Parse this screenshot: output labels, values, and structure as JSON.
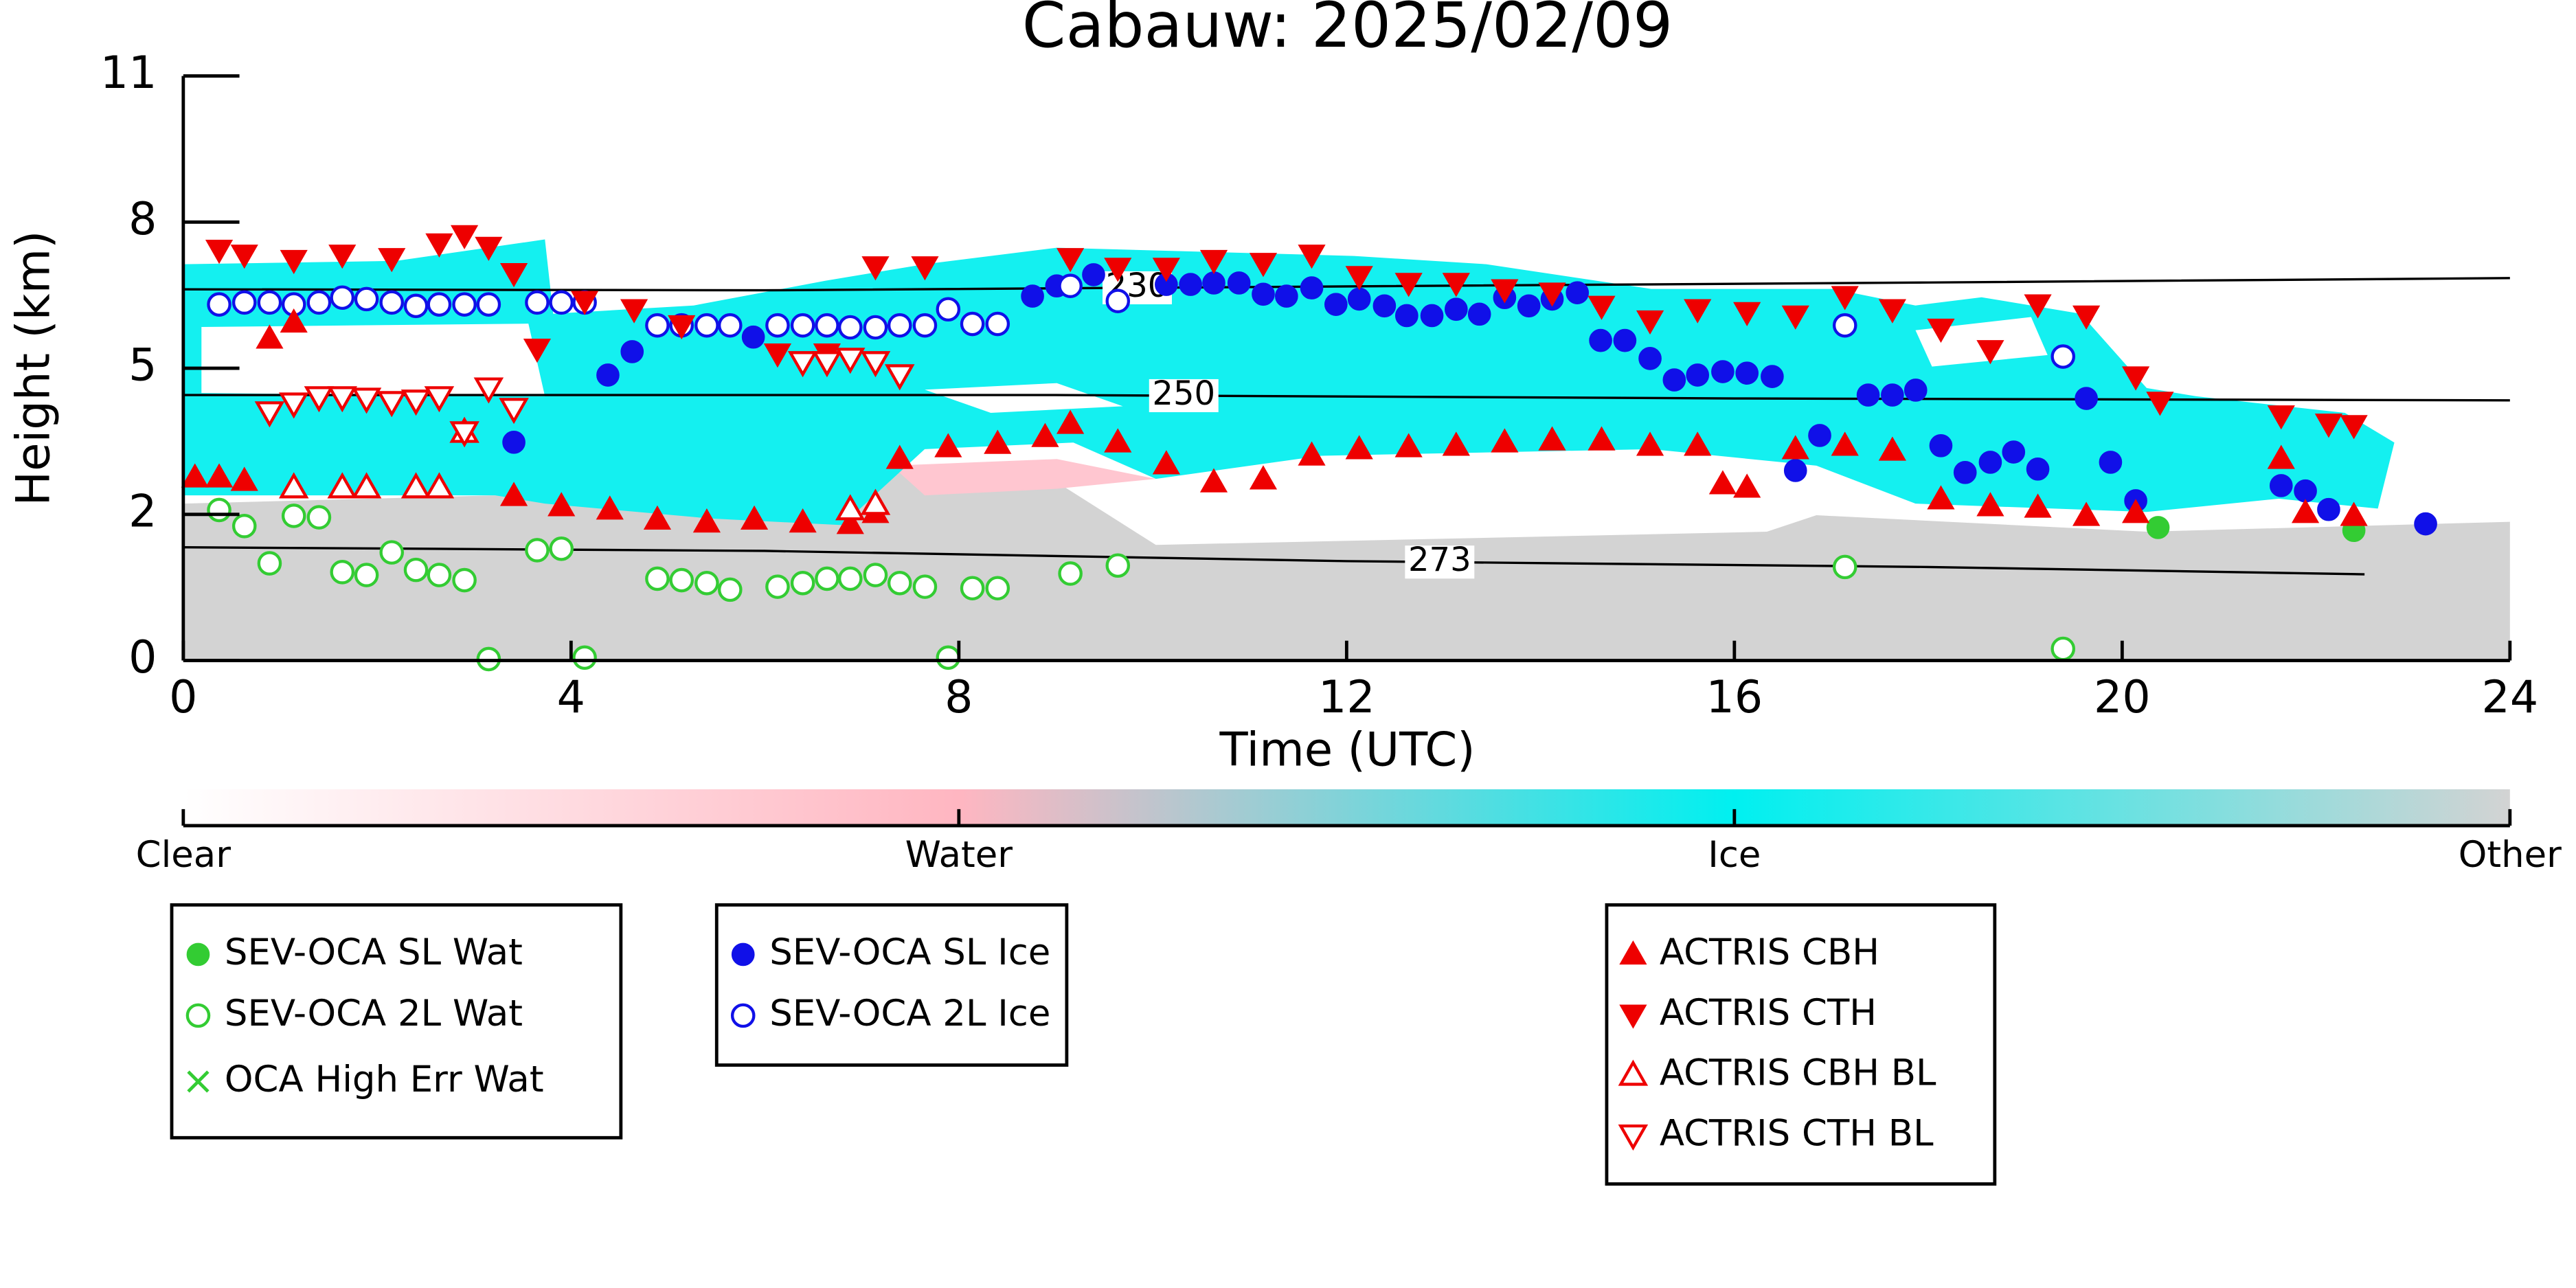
{
  "chart_data": {
    "type": "scatter",
    "title": "Cabauw: 2025/02/09",
    "x_label": "Time (UTC)",
    "y_label": "Height (km)",
    "xlim": [
      0,
      24
    ],
    "xticks": [
      0,
      4,
      8,
      12,
      16,
      20,
      24
    ],
    "ylim": [
      0,
      11
    ],
    "yticks": [
      0,
      2,
      5,
      8,
      11
    ],
    "y_tick_spacing": "even",
    "grid": false,
    "colorbar": {
      "labels": [
        "Clear",
        "Water",
        "Ice",
        "Other"
      ],
      "colors": [
        "#ffffff",
        "#ffb6c1",
        "#00f0f0",
        "#d3d3d3"
      ]
    },
    "contours": [
      {
        "level": 230,
        "x": [
          0,
          6,
          12,
          18,
          24
        ],
        "y": [
          6.62,
          6.6,
          6.68,
          6.76,
          6.85
        ]
      },
      {
        "level": 250,
        "x": [
          0,
          9,
          16,
          24
        ],
        "y": [
          4.45,
          4.45,
          4.38,
          4.34
        ]
      },
      {
        "level": 273,
        "x": [
          0,
          6,
          12,
          18,
          22.5
        ],
        "y": [
          1.55,
          1.5,
          1.36,
          1.28,
          1.18
        ]
      }
    ],
    "series": [
      {
        "name": "SEV-OCA SL Wat",
        "color": "#33cc33",
        "marker": "circle",
        "x": [
          20.37,
          22.39
        ],
        "values": [
          1.82,
          1.78
        ]
      },
      {
        "name": "SEV-OCA 2L Wat",
        "color": "#33cc33",
        "marker": "circle-open",
        "x": [
          0.37,
          0.63,
          0.89,
          1.14,
          1.4,
          1.64,
          1.89,
          2.15,
          2.4,
          2.64,
          2.9,
          3.15,
          3.65,
          3.9,
          4.14,
          4.89,
          5.14,
          5.4,
          5.64,
          6.13,
          6.39,
          6.64,
          6.88,
          7.14,
          7.39,
          7.65,
          7.89,
          8.14,
          8.4,
          9.15,
          9.64,
          17.14,
          19.39
        ],
        "values": [
          2.09,
          1.84,
          1.33,
          1.98,
          1.96,
          1.21,
          1.17,
          1.48,
          1.24,
          1.17,
          1.1,
          0.02,
          1.51,
          1.53,
          0.04,
          1.12,
          1.1,
          1.06,
          0.97,
          1.01,
          1.06,
          1.12,
          1.12,
          1.17,
          1.06,
          1.01,
          0.04,
          0.99,
          0.99,
          1.19,
          1.3,
          1.28,
          0.16
        ]
      },
      {
        "name": "OCA High Err Wat",
        "color": "#33cc33",
        "marker": "x",
        "x": [],
        "values": []
      },
      {
        "name": "SEV-OCA SL Ice",
        "color": "#1010e8",
        "marker": "circle",
        "x": [
          3.41,
          4.38,
          4.63,
          5.88,
          8.76,
          9.01,
          9.39,
          10.14,
          10.39,
          10.63,
          10.89,
          11.14,
          11.38,
          11.64,
          11.89,
          12.13,
          12.39,
          12.62,
          12.88,
          13.13,
          13.37,
          13.63,
          13.88,
          14.12,
          14.38,
          14.62,
          14.87,
          15.13,
          15.38,
          15.62,
          15.88,
          16.13,
          16.39,
          16.63,
          16.88,
          17.38,
          17.63,
          17.87,
          18.13,
          18.38,
          18.64,
          18.88,
          19.13,
          19.63,
          19.88,
          20.14,
          21.64,
          21.89,
          22.13,
          23.13
        ],
        "values": [
          3.48,
          4.86,
          5.34,
          5.64,
          6.48,
          6.69,
          6.92,
          6.72,
          6.72,
          6.75,
          6.75,
          6.52,
          6.48,
          6.65,
          6.31,
          6.42,
          6.28,
          6.08,
          6.08,
          6.21,
          6.11,
          6.45,
          6.28,
          6.42,
          6.55,
          5.57,
          5.57,
          5.2,
          4.76,
          4.86,
          4.93,
          4.9,
          4.83,
          2.9,
          3.62,
          4.45,
          4.45,
          4.55,
          3.41,
          2.86,
          3.07,
          3.28,
          2.93,
          4.38,
          3.07,
          2.28,
          2.59,
          2.48,
          2.1,
          1.87
        ]
      },
      {
        "name": "SEV-OCA 2L Ice",
        "color": "#1010e8",
        "marker": "circle-open",
        "x": [
          0.37,
          0.63,
          0.89,
          1.14,
          1.4,
          1.64,
          1.89,
          2.15,
          2.4,
          2.64,
          2.9,
          3.15,
          3.65,
          3.9,
          4.14,
          4.89,
          5.14,
          5.4,
          5.64,
          6.13,
          6.39,
          6.64,
          6.88,
          7.14,
          7.39,
          7.65,
          7.89,
          8.14,
          8.4,
          9.15,
          9.64,
          17.14,
          19.39
        ],
        "values": [
          6.31,
          6.35,
          6.35,
          6.31,
          6.35,
          6.45,
          6.42,
          6.35,
          6.28,
          6.31,
          6.31,
          6.31,
          6.35,
          6.35,
          6.35,
          5.88,
          5.88,
          5.88,
          5.88,
          5.88,
          5.88,
          5.88,
          5.84,
          5.84,
          5.88,
          5.88,
          6.21,
          5.91,
          5.91,
          6.69,
          6.38,
          5.88,
          5.24
        ]
      },
      {
        "name": "ACTRIS CBH",
        "color": "#ee0000",
        "marker": "triangle-up",
        "x": [
          0.12,
          0.37,
          0.63,
          0.89,
          1.14,
          3.41,
          3.9,
          4.4,
          4.89,
          5.4,
          5.89,
          6.39,
          6.88,
          7.14,
          7.39,
          7.89,
          8.4,
          8.89,
          9.15,
          9.64,
          10.14,
          10.63,
          11.14,
          11.64,
          12.13,
          12.64,
          13.13,
          13.63,
          14.12,
          14.63,
          15.13,
          15.62,
          15.88,
          16.13,
          16.63,
          17.14,
          17.63,
          18.13,
          18.64,
          19.13,
          19.63,
          20.14,
          21.64,
          21.89,
          22.39
        ],
        "values": [
          2.76,
          2.76,
          2.69,
          5.61,
          5.94,
          2.38,
          2.17,
          2.1,
          1.93,
          1.89,
          1.93,
          1.89,
          1.87,
          2.03,
          3.14,
          3.38,
          3.45,
          3.59,
          3.86,
          3.48,
          3.03,
          2.66,
          2.72,
          3.21,
          3.34,
          3.38,
          3.41,
          3.48,
          3.52,
          3.52,
          3.41,
          3.41,
          2.62,
          2.55,
          3.34,
          3.41,
          3.31,
          2.31,
          2.17,
          2.14,
          1.98,
          2.03,
          3.14,
          2.03,
          1.98
        ]
      },
      {
        "name": "ACTRIS CTH",
        "color": "#ee0000",
        "marker": "triangle-down",
        "x": [
          0.37,
          0.63,
          1.14,
          1.64,
          2.15,
          2.64,
          2.9,
          3.15,
          3.41,
          3.65,
          4.14,
          4.65,
          5.14,
          6.13,
          6.64,
          7.14,
          7.65,
          9.15,
          9.64,
          10.14,
          10.63,
          11.14,
          11.64,
          12.13,
          12.64,
          13.13,
          13.63,
          14.12,
          14.63,
          15.13,
          15.62,
          16.13,
          16.63,
          17.14,
          17.63,
          18.13,
          18.64,
          19.13,
          19.63,
          20.14,
          20.39,
          21.64,
          22.13,
          22.39
        ],
        "values": [
          7.43,
          7.33,
          7.22,
          7.33,
          7.26,
          7.56,
          7.73,
          7.49,
          6.95,
          5.4,
          6.38,
          6.21,
          5.88,
          5.3,
          5.3,
          7.09,
          7.09,
          7.26,
          7.06,
          7.06,
          7.22,
          7.16,
          7.33,
          6.89,
          6.75,
          6.75,
          6.62,
          6.55,
          6.28,
          5.98,
          6.21,
          6.15,
          6.08,
          6.48,
          6.21,
          5.81,
          5.37,
          6.31,
          6.08,
          4.83,
          4.31,
          4.03,
          3.86,
          3.83
        ]
      },
      {
        "name": "ACTRIS CBH BL",
        "color": "#ee0000",
        "marker": "triangle-up-open",
        "x": [
          1.14,
          1.64,
          1.89,
          2.4,
          2.64,
          2.9,
          6.88,
          7.14
        ],
        "values": [
          2.55,
          2.55,
          2.55,
          2.55,
          2.55,
          3.69,
          2.1,
          2.21
        ]
      },
      {
        "name": "ACTRIS CTH BL",
        "color": "#ee0000",
        "marker": "triangle-down-open",
        "x": [
          0.89,
          1.14,
          1.4,
          1.64,
          1.89,
          2.15,
          2.4,
          2.64,
          2.9,
          3.15,
          3.41,
          6.39,
          6.64,
          6.88,
          7.14,
          7.39
        ],
        "values": [
          4.1,
          4.28,
          4.41,
          4.41,
          4.38,
          4.31,
          4.34,
          4.41,
          3.69,
          4.59,
          4.17,
          5.13,
          5.13,
          5.2,
          5.13,
          4.86
        ]
      }
    ]
  }
}
